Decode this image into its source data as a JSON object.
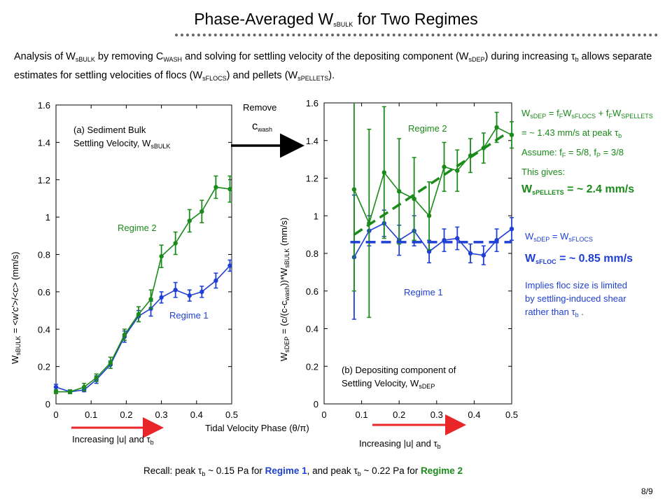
{
  "slide": {
    "title_main": "Phase-Averaged W",
    "title_sub": "sBULK",
    "title_tail": " for Two Regimes",
    "page_number": "8/9"
  },
  "intro": {
    "p1": "Analysis of W",
    "s1": "sBULK",
    "p2": "  by removing C",
    "s2": "WASH",
    "p3": " and solving for settling velocity of the depositing component (W",
    "s3": "sDEP",
    "p4": ") during increasing ",
    "tau": "τ",
    "s4": "b",
    "p5": " allows separate estimates for settling velocities of flocs (W",
    "s5": "sFLOCS",
    "p6": ") and pellets (W",
    "s6": "sPELLETS",
    "p7": ")."
  },
  "arrow_label": {
    "line1": "Remove",
    "line2": "c",
    "line2_sub": "wash"
  },
  "left_chart_text": {
    "panel_label_1": "(a) Sediment Bulk",
    "panel_label_2a": "Settling Velocity, W",
    "panel_label_2b": "sBULK",
    "regime2": "Regime 2",
    "regime1": "Regime 1",
    "ylabel_a": "W",
    "ylabel_sub": "sBULK",
    "ylabel_b": " = <w'c'>/<c> (mm/s)",
    "increasing_a": "Increasing |u| and ",
    "tau": "τ",
    "increasing_sub": "b"
  },
  "right_chart_text": {
    "panel_label_1": "(b) Depositing component of",
    "panel_label_2a": "Settling Velocity, W",
    "panel_label_2b": "sDEP",
    "regime2": "Regime 2",
    "regime1": "Regime 1",
    "ylabel_a": "W",
    "ylabel_sub1": "sDEP",
    "ylabel_b": " = (c/(c-c",
    "ylabel_sub2": "wash",
    "ylabel_c": "))*W",
    "ylabel_sub3": "sBULK",
    "ylabel_d": " (mm/s)",
    "increasing_a": "Increasing |u| and ",
    "tau": "τ",
    "increasing_sub": "b"
  },
  "xlabel": "Tidal Velocity Phase (θ/π)",
  "notes_green": {
    "l1a": "W",
    "l1s1": "sDEP",
    "l1b": " = f",
    "l1s2": "F",
    "l1c": "W",
    "l1s3": "sFLOCS",
    "l1d": " + f",
    "l1s4": "F",
    "l1e": "W",
    "l1s5": "SPELLETS",
    "l2": "= ~ 1.43 mm/s at peak ",
    "tau": "τ",
    "l2s": "b",
    "l3a": "Assume: f",
    "l3s1": "F",
    "l3b": " = 5/8, f",
    "l3s2": "P",
    "l3c": " = 3/8",
    "l4": "This gives:",
    "l5a": "W",
    "l5s": "sPELLETS",
    "l5b": " = ~ 2.4 mm/s"
  },
  "notes_blue": {
    "l1a": "W",
    "l1s1": "sDEP",
    "l1b": " = W",
    "l1s2": "sFLOCS",
    "l2a": "W",
    "l2s": "sFLOC",
    "l2b": " = ~ 0.85 mm/s",
    "l3": "Implies floc size is limited",
    "l4": "by settling-induced shear",
    "l5a": "rather than ",
    "tau": "τ",
    "l5s": "b",
    "l5b": " ."
  },
  "recall": {
    "a": "Recall: peak ",
    "tau": "τ",
    "s1": "b",
    "b": " ~ 0.15 Pa for ",
    "r1": "Regime 1",
    "c": ", and peak ",
    "s2": "b",
    "d": " ~ 0.22 Pa for ",
    "r2": "Regime 2"
  },
  "colors": {
    "regime1": "#1f3fd4",
    "regime2": "#1a8a1a",
    "arrow_red": "#e8262a"
  },
  "chart_data": [
    {
      "type": "line",
      "xlim": [
        0,
        0.5
      ],
      "ylim": [
        0,
        1.6
      ],
      "xticks": [
        "0",
        "0.1",
        "0.2",
        "0.3",
        "0.4",
        "0.5"
      ],
      "yticks": [
        "0",
        "0.2",
        "0.4",
        "0.6",
        "0.8",
        "1",
        "1.2",
        "1.4",
        "1.6"
      ],
      "series": [
        {
          "name": "Regime 1",
          "color": "#1f3fd4",
          "x": [
            0,
            0.04,
            0.08,
            0.115,
            0.155,
            0.195,
            0.235,
            0.27,
            0.3,
            0.34,
            0.38,
            0.415,
            0.455,
            0.495
          ],
          "y": [
            0.09,
            0.065,
            0.075,
            0.13,
            0.21,
            0.36,
            0.47,
            0.51,
            0.57,
            0.61,
            0.58,
            0.6,
            0.66,
            0.74
          ],
          "err": [
            0.015,
            0.01,
            0.01,
            0.02,
            0.02,
            0.03,
            0.03,
            0.04,
            0.03,
            0.04,
            0.03,
            0.03,
            0.04,
            0.03
          ]
        },
        {
          "name": "Regime 2",
          "color": "#1a8a1a",
          "x": [
            0,
            0.04,
            0.08,
            0.115,
            0.155,
            0.195,
            0.235,
            0.27,
            0.3,
            0.34,
            0.38,
            0.415,
            0.455,
            0.495
          ],
          "y": [
            0.065,
            0.065,
            0.09,
            0.14,
            0.22,
            0.37,
            0.48,
            0.56,
            0.79,
            0.86,
            0.98,
            1.03,
            1.16,
            1.15
          ],
          "err": [
            0.01,
            0.01,
            0.02,
            0.02,
            0.03,
            0.03,
            0.04,
            0.05,
            0.06,
            0.06,
            0.06,
            0.06,
            0.06,
            0.07
          ]
        }
      ]
    },
    {
      "type": "line",
      "xlim": [
        0,
        0.5
      ],
      "ylim": [
        0,
        1.6
      ],
      "xticks": [
        "0",
        "0.1",
        "0.2",
        "0.3",
        "0.4",
        "0.5"
      ],
      "yticks": [
        "0",
        "0.2",
        "0.4",
        "0.6",
        "0.8",
        "1",
        "1.2",
        "1.4",
        "1.6"
      ],
      "series": [
        {
          "name": "Regime 1",
          "color": "#1f3fd4",
          "x": [
            0.08,
            0.12,
            0.16,
            0.2,
            0.24,
            0.28,
            0.32,
            0.355,
            0.39,
            0.425,
            0.46,
            0.5
          ],
          "y": [
            0.78,
            0.92,
            0.96,
            0.87,
            0.92,
            0.81,
            0.87,
            0.88,
            0.8,
            0.79,
            0.87,
            0.93
          ],
          "err": [
            0.33,
            0.08,
            0.07,
            0.08,
            0.08,
            0.06,
            0.06,
            0.06,
            0.05,
            0.05,
            0.06,
            0.06
          ]
        },
        {
          "name": "Regime 2",
          "color": "#1a8a1a",
          "x": [
            0.08,
            0.12,
            0.16,
            0.2,
            0.24,
            0.28,
            0.32,
            0.355,
            0.39,
            0.425,
            0.46,
            0.5
          ],
          "y": [
            1.14,
            0.96,
            1.23,
            1.13,
            1.09,
            1.0,
            1.26,
            1.24,
            1.32,
            1.36,
            1.47,
            1.43
          ],
          "err": [
            0.54,
            0.5,
            0.35,
            0.28,
            0.22,
            0.18,
            0.13,
            0.11,
            0.09,
            0.08,
            0.08,
            0.07
          ]
        },
        {
          "name": "Regime 1 fit",
          "style": "dashed",
          "color": "#1f3fd4",
          "x": [
            0.07,
            0.5
          ],
          "y": [
            0.86,
            0.86
          ]
        },
        {
          "name": "Regime 2 fit",
          "style": "dashed",
          "color": "#1a8a1a",
          "x": [
            0.08,
            0.48
          ],
          "y": [
            0.9,
            1.43
          ]
        }
      ]
    }
  ]
}
